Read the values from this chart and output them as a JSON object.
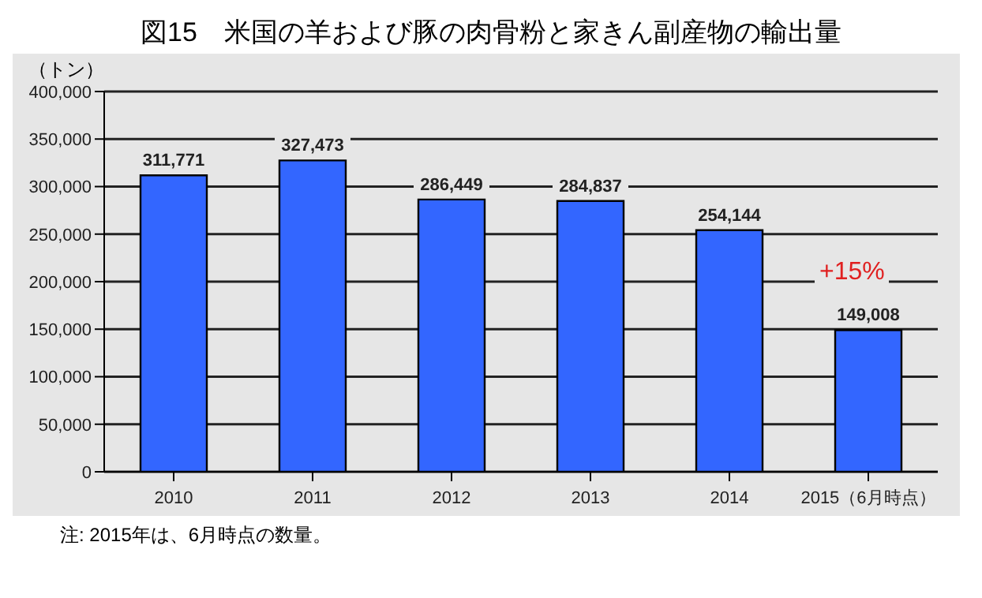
{
  "chart_data": {
    "type": "bar",
    "title": "図15　米国の羊および豚の肉骨粉と家きん副産物の輸出量",
    "ylabel": "（トン）",
    "categories": [
      "2010",
      "2011",
      "2012",
      "2013",
      "2014",
      "2015（6月時点）"
    ],
    "values": [
      311771,
      327473,
      286449,
      284837,
      254144,
      149008
    ],
    "value_labels": [
      "311,771",
      "327,473",
      "286,449",
      "284,837",
      "254,144",
      "149,008"
    ],
    "color": "#3366ff",
    "ylim": [
      0,
      400000
    ],
    "yticks": [
      {
        "value": 0,
        "label": "0"
      },
      {
        "value": 50000,
        "label": "50,000"
      },
      {
        "value": 100000,
        "label": "100,000"
      },
      {
        "value": 150000,
        "label": "150,000"
      },
      {
        "value": 200000,
        "label": "200,000"
      },
      {
        "value": 250000,
        "label": "250,000"
      },
      {
        "value": 300000,
        "label": "300,000"
      },
      {
        "value": 350000,
        "label": "350,000"
      },
      {
        "value": 400000,
        "label": "400,000"
      }
    ],
    "grid": "y",
    "annotations": [
      "+15%",
      "注: 2015年は、6月時点の数量。"
    ]
  }
}
